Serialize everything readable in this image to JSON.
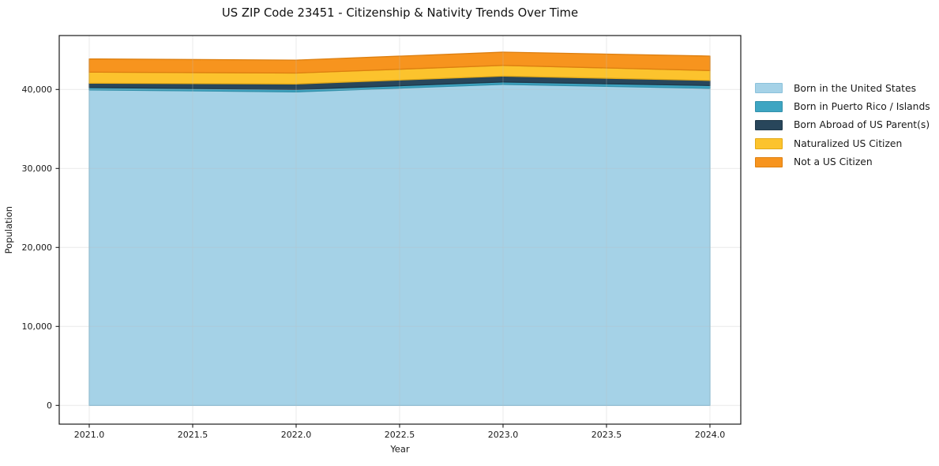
{
  "title": "US ZIP Code 23451 - Citizenship & Nativity Trends Over Time",
  "chart_data": {
    "type": "area",
    "stacked": true,
    "title": "US ZIP Code 23451 - Citizenship & Nativity Trends Over Time",
    "xlabel": "Year",
    "ylabel": "Population",
    "x": [
      2021,
      2022,
      2023,
      2024
    ],
    "series": [
      {
        "name": "Born in the United States",
        "fill": "#A5D2E7",
        "edge": "#8CC2DB",
        "values": [
          39950,
          39700,
          40650,
          40150
        ]
      },
      {
        "name": "Born in Puerto Rico / Islands",
        "fill": "#3EA5C2",
        "edge": "#3391AB",
        "values": [
          300,
          300,
          300,
          350
        ]
      },
      {
        "name": "Born Abroad of US Parent(s)",
        "fill": "#28465B",
        "edge": "#1F3849",
        "values": [
          550,
          700,
          750,
          650
        ]
      },
      {
        "name": "Naturalized US Citizen",
        "fill": "#FCC32D",
        "edge": "#E2A918",
        "values": [
          1400,
          1380,
          1350,
          1250
        ]
      },
      {
        "name": "Not a US Citizen",
        "fill": "#F7941E",
        "edge": "#DD7F10",
        "values": [
          1670,
          1640,
          1680,
          1830
        ]
      }
    ],
    "totals": [
      43870,
      43720,
      44730,
      44230
    ],
    "x_ticks": [
      2021.0,
      2021.5,
      2022.0,
      2022.5,
      2023.0,
      2023.5,
      2024.0
    ],
    "x_tick_labels": [
      "2021.0",
      "2021.5",
      "2022.0",
      "2022.5",
      "2023.0",
      "2023.5",
      "2024.0"
    ],
    "y_ticks": [
      0,
      10000,
      20000,
      30000,
      40000
    ],
    "y_tick_labels": [
      "0",
      "10,000",
      "20,000",
      "30,000",
      "40,000"
    ],
    "x_range": [
      2020.855,
      2024.149
    ],
    "y_range": [
      -2370,
      46830
    ],
    "grid": true,
    "grid_color": "#bfbfbf",
    "grid_opacity": 0.32,
    "spine_color": "#1a1a1a",
    "tick_color": "#1a1a1a",
    "tick_label_color": "#1a1a1a",
    "legend_position": "right"
  }
}
